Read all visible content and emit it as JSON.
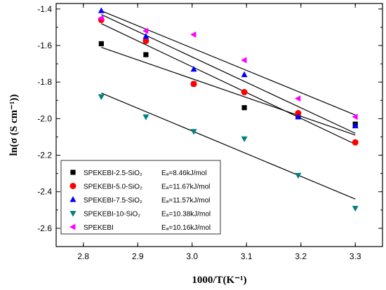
{
  "chart_data": {
    "type": "scatter",
    "xlabel": "1000/T(K⁻¹)",
    "ylabel": "ln(σ (S cm⁻¹))",
    "xlim": [
      2.75,
      3.35
    ],
    "ylim": [
      -2.7,
      -1.37
    ],
    "xticks": [
      "2.8",
      "2.9",
      "3.0",
      "3.1",
      "3.2",
      "3.3"
    ],
    "yticks": [
      "-1.4",
      "-1.6",
      "-1.8",
      "-2.0",
      "-2.2",
      "-2.4",
      "-2.6"
    ],
    "legend_position": "bottom-left",
    "series": [
      {
        "name": "SPEKEBI-2.5-SiO₂",
        "ea": "Eₐ=8.46kJ/mol",
        "marker": "square",
        "color": "#000000",
        "x": [
          2.833,
          2.915,
          3.003,
          3.096,
          3.195,
          3.3
        ],
        "y": [
          -1.59,
          -1.65,
          -1.81,
          -1.94,
          -1.99,
          -2.03
        ],
        "fit": [
          [
            2.833,
            -1.61
          ],
          [
            3.3,
            -2.09
          ]
        ]
      },
      {
        "name": "SPEKEBI-5.0-SiO₂",
        "ea": "Eₐ=11.67kJ/mol",
        "marker": "circle",
        "color": "#ff0000",
        "x": [
          2.833,
          2.915,
          3.003,
          3.096,
          3.195,
          3.3
        ],
        "y": [
          -1.46,
          -1.575,
          -1.81,
          -1.855,
          -1.97,
          -2.13
        ],
        "fit": [
          [
            2.833,
            -1.48
          ],
          [
            3.3,
            -2.14
          ]
        ]
      },
      {
        "name": "SPEKEBI-7.5-SiO₂",
        "ea": "Eₐ=11.57kJ/mol",
        "marker": "triangle-up",
        "color": "#0000ff",
        "x": [
          2.833,
          2.915,
          3.003,
          3.096,
          3.195,
          3.3
        ],
        "y": [
          -1.41,
          -1.55,
          -1.73,
          -1.76,
          -1.99,
          -2.04
        ],
        "fit": [
          [
            2.833,
            -1.43
          ],
          [
            3.3,
            -2.08
          ]
        ]
      },
      {
        "name": "SPEKEBI-10-SiO₂",
        "ea": "Eₐ=10.38kJ/mol",
        "marker": "triangle-down",
        "color": "#008080",
        "x": [
          2.833,
          2.915,
          3.003,
          3.096,
          3.195,
          3.3
        ],
        "y": [
          -1.88,
          -1.99,
          -2.07,
          -2.11,
          -2.31,
          -2.49
        ],
        "fit": [
          [
            2.833,
            -1.86
          ],
          [
            3.3,
            -2.44
          ]
        ]
      },
      {
        "name": "SPEKEBI",
        "ea": "Eₐ=10.16kJ/mol",
        "marker": "triangle-left",
        "color": "#ff00ff",
        "x": [
          2.833,
          2.915,
          3.003,
          3.096,
          3.195,
          3.3
        ],
        "y": [
          -1.45,
          -1.52,
          -1.54,
          -1.68,
          -1.89,
          -1.99
        ],
        "fit": [
          [
            2.833,
            -1.41
          ],
          [
            3.3,
            -1.98
          ]
        ]
      }
    ]
  }
}
